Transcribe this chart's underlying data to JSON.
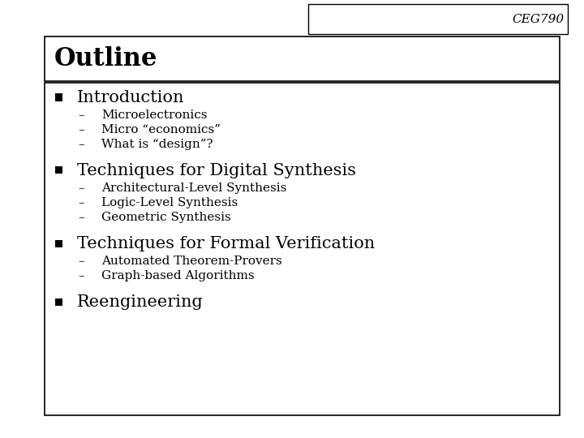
{
  "slide_title": "Outline",
  "course_code": "CEG790",
  "background_color": "#ffffff",
  "border_color": "#000000",
  "title_font_size": 22,
  "course_font_size": 11,
  "bullet_font_size": 15,
  "sub_font_size": 11,
  "bullet_items": [
    {
      "text": "Introduction",
      "sub_items": [
        "Microelectronics",
        "Micro “economics”",
        "What is “design”?"
      ]
    },
    {
      "text": "Techniques for Digital Synthesis",
      "sub_items": [
        "Architectural-Level Synthesis",
        "Logic-Level Synthesis",
        "Geometric Synthesis"
      ]
    },
    {
      "text": "Techniques for Formal Verification",
      "sub_items": [
        "Automated Theorem-Provers",
        "Graph-based Algorithms"
      ]
    },
    {
      "text": "Reengineering",
      "sub_items": []
    }
  ]
}
